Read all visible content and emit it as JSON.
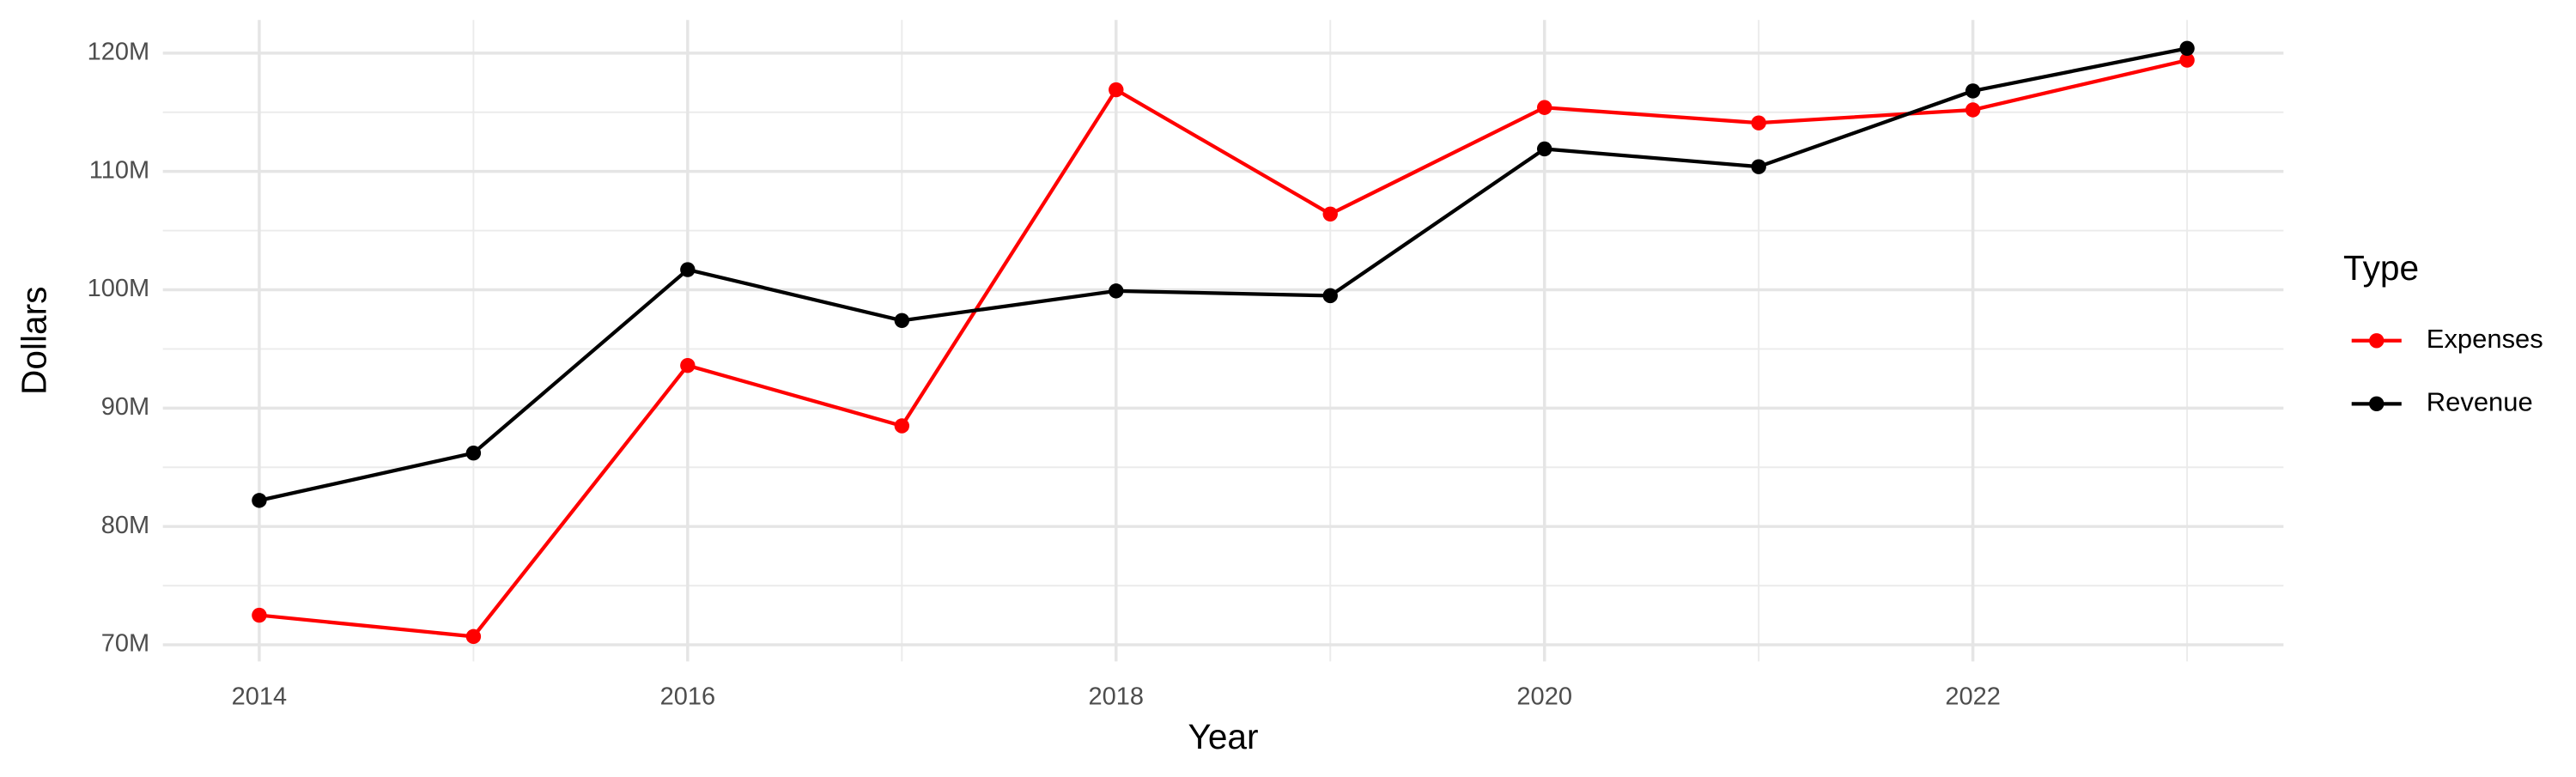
{
  "chart_data": {
    "type": "line",
    "x_label": "Year",
    "y_label": "Dollars",
    "x": [
      2014,
      2015,
      2016,
      2017,
      2018,
      2019,
      2020,
      2021,
      2022,
      2023
    ],
    "series": [
      {
        "name": "Expenses",
        "color": "#ff0000",
        "values": [
          72500000,
          70700000,
          93600000,
          88500000,
          116900000,
          106400000,
          115400000,
          114100000,
          115200000,
          119400000
        ]
      },
      {
        "name": "Revenue",
        "color": "#000000",
        "values": [
          82200000,
          86200000,
          101700000,
          97400000,
          99900000,
          99500000,
          111900000,
          110400000,
          116800000,
          120400000
        ]
      }
    ],
    "xlim": [
      2013.55,
      2023.45
    ],
    "xticks": [
      2014,
      2016,
      2018,
      2020,
      2022
    ],
    "ylim": [
      68600000,
      122800000
    ],
    "yticks": [
      {
        "value": 70000000,
        "label": "70M"
      },
      {
        "value": 80000000,
        "label": "80M"
      },
      {
        "value": 90000000,
        "label": "90M"
      },
      {
        "value": 100000000,
        "label": "100M"
      },
      {
        "value": 110000000,
        "label": "110M"
      },
      {
        "value": 120000000,
        "label": "120M"
      }
    ],
    "grid": true,
    "legend_title": "Type",
    "legend_position": "right"
  }
}
